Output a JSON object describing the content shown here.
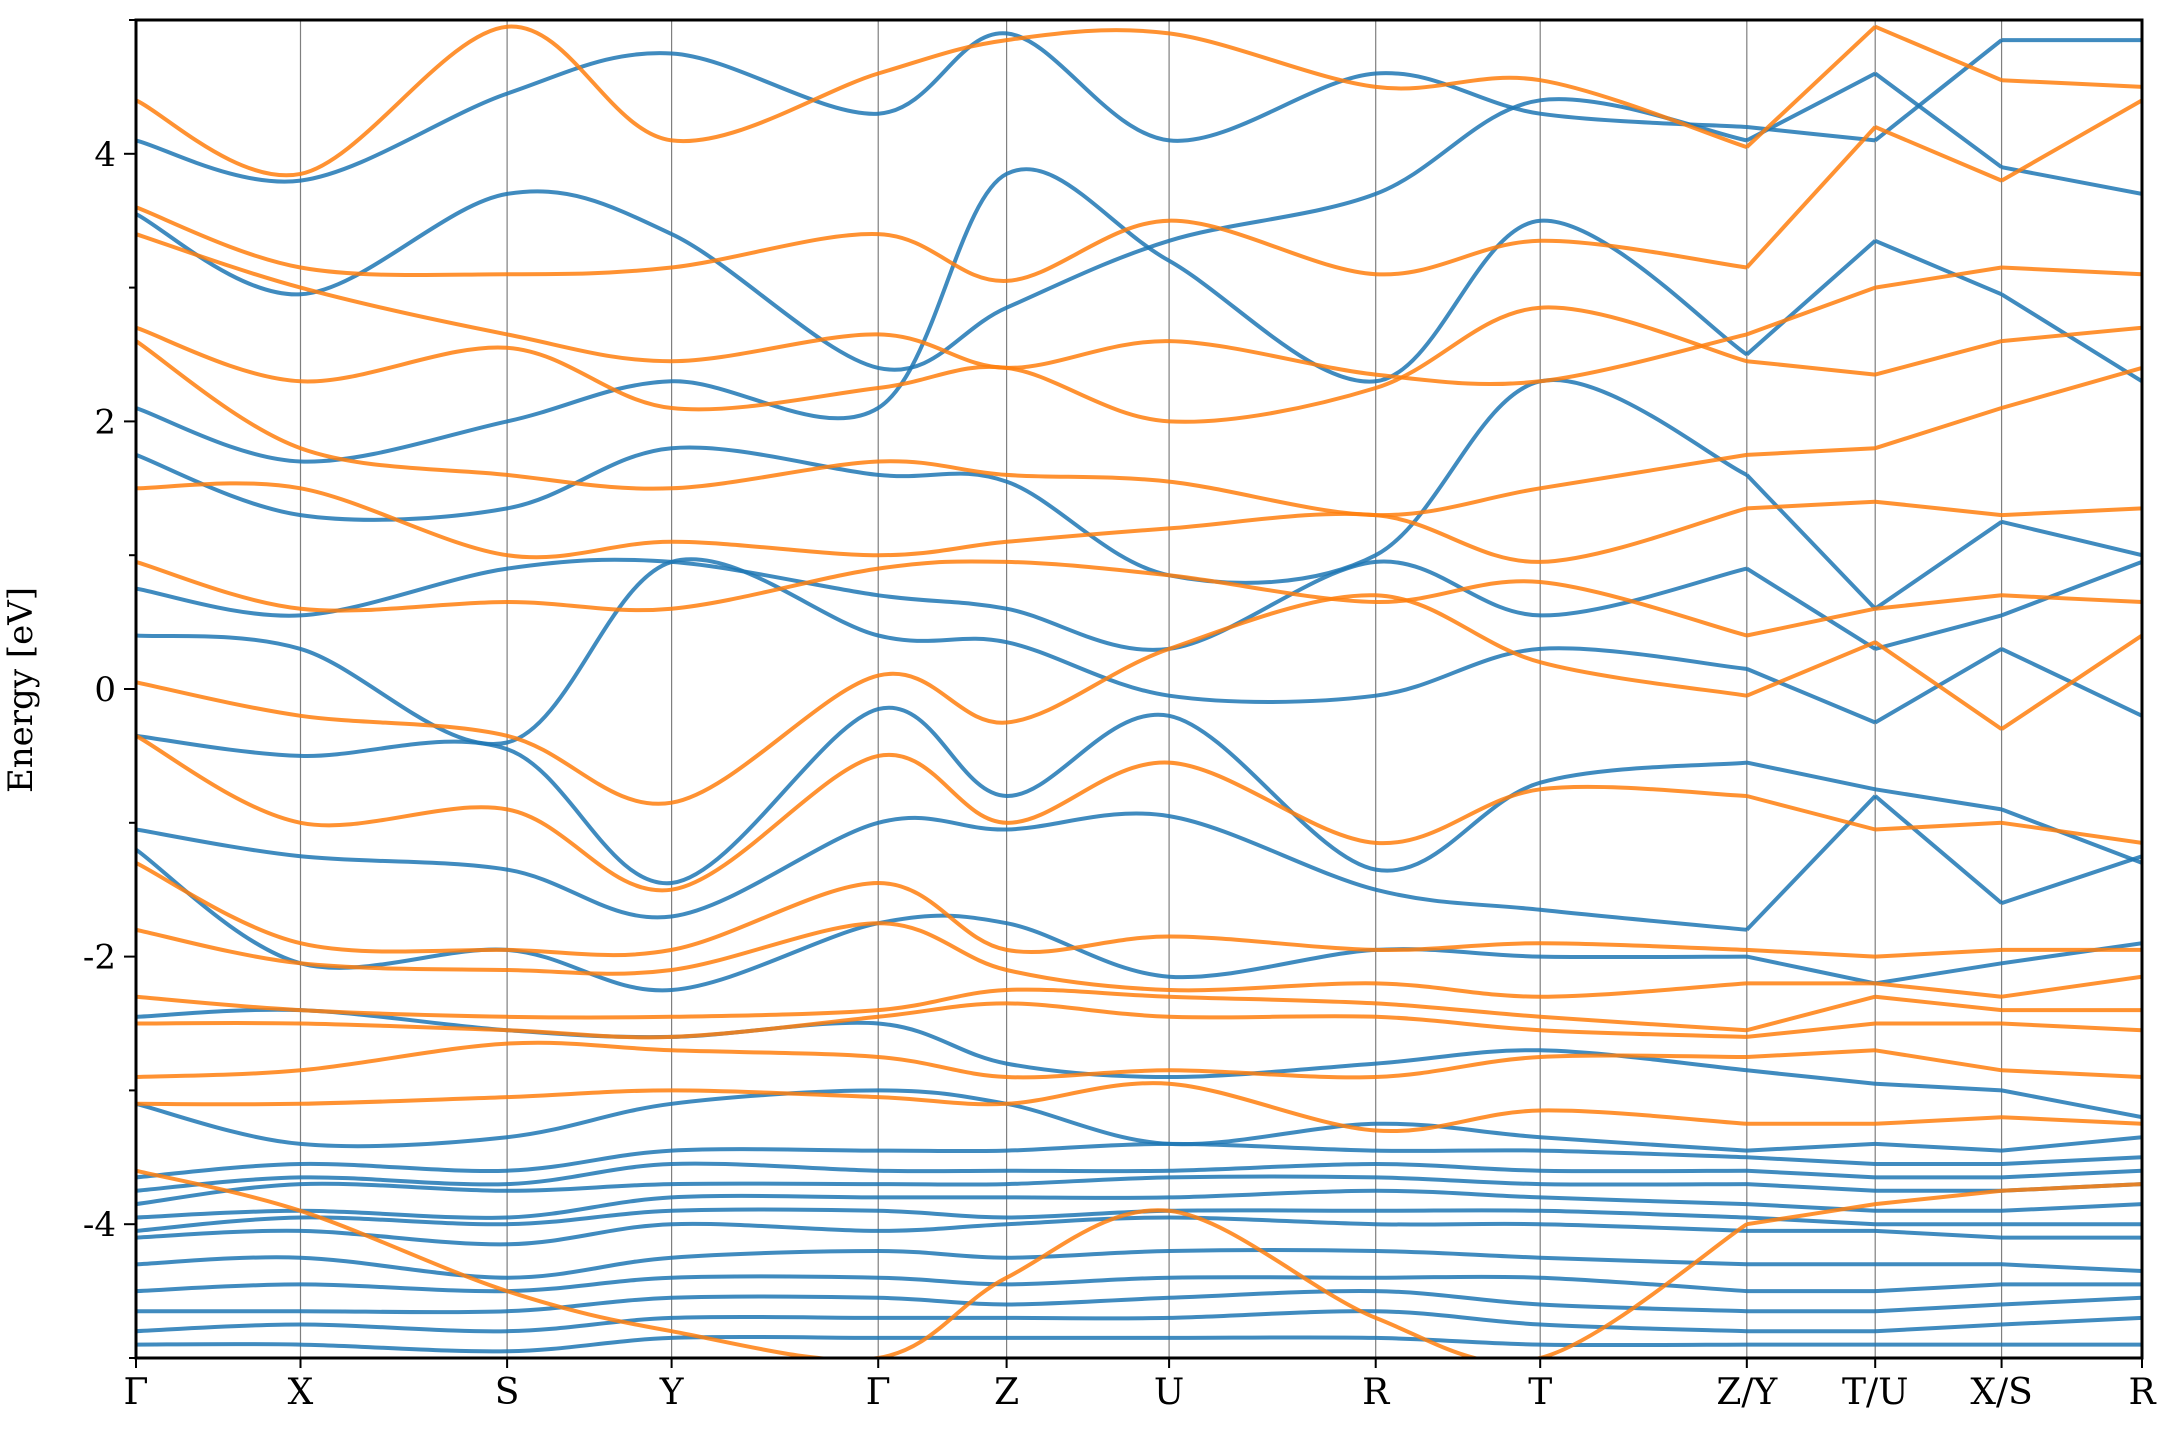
{
  "chart_data": {
    "type": "line",
    "title": "",
    "xlabel": "",
    "ylabel": "Energy [eV]",
    "ylim": [
      -5,
      5
    ],
    "yticks": [
      -4,
      -2,
      0,
      2,
      4
    ],
    "grid": "vertical lines at high-symmetry points",
    "legend": "none",
    "colors": {
      "spin_up": "#1f77b4",
      "spin_down": "#ff7f0e"
    },
    "kpath": [
      {
        "label": "Γ",
        "x": 0.0
      },
      {
        "label": "X",
        "x": 0.082
      },
      {
        "label": "S",
        "x": 0.185
      },
      {
        "label": "Y",
        "x": 0.267
      },
      {
        "label": "Γ",
        "x": 0.37
      },
      {
        "label": "Z",
        "x": 0.434
      },
      {
        "label": "U",
        "x": 0.515
      },
      {
        "label": "R",
        "x": 0.618
      },
      {
        "label": "T",
        "x": 0.7
      },
      {
        "label": "Z/Y",
        "x": 0.803
      },
      {
        "label": "T/U",
        "x": 0.867
      },
      {
        "label": "X/S",
        "x": 0.93
      },
      {
        "label": "R",
        "x": 1.0
      }
    ],
    "discontinuities": [
      0.803,
      0.867,
      0.93
    ],
    "series": [
      {
        "color": "#1f77b4",
        "bands": [
          [
            4.1,
            3.8,
            4.45,
            4.75,
            4.3,
            4.9,
            4.1,
            4.6,
            4.3,
            4.2,
            4.1,
            4.85,
            4.85
          ],
          [
            3.55,
            2.95,
            3.7,
            3.4,
            2.4,
            2.85,
            3.35,
            3.7,
            4.4,
            4.1,
            4.6,
            3.9,
            3.7
          ],
          [
            2.1,
            1.7,
            2.0,
            2.3,
            2.1,
            3.85,
            3.2,
            2.3,
            3.5,
            2.5,
            3.35,
            2.95,
            2.3
          ],
          [
            1.75,
            1.3,
            1.35,
            1.8,
            1.6,
            1.55,
            0.85,
            1.0,
            2.3,
            1.6,
            0.6,
            1.25,
            1.0
          ],
          [
            0.75,
            0.55,
            0.9,
            0.95,
            0.7,
            0.6,
            0.3,
            0.95,
            0.55,
            0.9,
            0.3,
            0.55,
            0.95
          ],
          [
            0.4,
            0.3,
            -0.4,
            0.95,
            0.4,
            0.35,
            -0.05,
            -0.05,
            0.3,
            0.15,
            -0.25,
            0.3,
            -0.2
          ],
          [
            -0.35,
            -0.5,
            -0.45,
            -1.45,
            -0.15,
            -0.8,
            -0.2,
            -1.35,
            -0.7,
            -0.55,
            -0.75,
            -0.9,
            -1.3
          ],
          [
            -1.05,
            -1.25,
            -1.35,
            -1.7,
            -1.0,
            -1.05,
            -0.95,
            -1.5,
            -1.65,
            -1.8,
            -0.8,
            -1.6,
            -1.25
          ],
          [
            -1.2,
            -2.05,
            -1.95,
            -2.25,
            -1.75,
            -1.75,
            -2.15,
            -1.95,
            -2.0,
            -2.0,
            -2.2,
            -2.05,
            -1.9
          ],
          [
            -2.45,
            -2.4,
            -2.55,
            -2.6,
            -2.5,
            -2.8,
            -2.9,
            -2.8,
            -2.7,
            -2.85,
            -2.95,
            -3.0,
            -3.2
          ],
          [
            -3.1,
            -3.4,
            -3.35,
            -3.1,
            -3.0,
            -3.1,
            -3.4,
            -3.25,
            -3.35,
            -3.45,
            -3.4,
            -3.45,
            -3.35
          ],
          [
            -3.65,
            -3.55,
            -3.6,
            -3.45,
            -3.45,
            -3.45,
            -3.4,
            -3.45,
            -3.45,
            -3.5,
            -3.55,
            -3.55,
            -3.5
          ],
          [
            -3.75,
            -3.65,
            -3.7,
            -3.55,
            -3.6,
            -3.6,
            -3.6,
            -3.55,
            -3.6,
            -3.6,
            -3.65,
            -3.65,
            -3.6
          ],
          [
            -3.85,
            -3.7,
            -3.75,
            -3.7,
            -3.7,
            -3.7,
            -3.65,
            -3.65,
            -3.7,
            -3.7,
            -3.75,
            -3.75,
            -3.7
          ],
          [
            -3.95,
            -3.9,
            -3.95,
            -3.8,
            -3.8,
            -3.8,
            -3.8,
            -3.75,
            -3.8,
            -3.85,
            -3.9,
            -3.9,
            -3.85
          ],
          [
            -4.05,
            -3.95,
            -4.0,
            -3.9,
            -3.9,
            -3.95,
            -3.9,
            -3.9,
            -3.9,
            -3.95,
            -4.0,
            -4.0,
            -4.0
          ],
          [
            -4.1,
            -4.05,
            -4.15,
            -4.0,
            -4.05,
            -4.0,
            -3.95,
            -4.0,
            -4.0,
            -4.05,
            -4.05,
            -4.1,
            -4.1
          ],
          [
            -4.3,
            -4.25,
            -4.4,
            -4.25,
            -4.2,
            -4.25,
            -4.2,
            -4.2,
            -4.25,
            -4.3,
            -4.3,
            -4.3,
            -4.35
          ],
          [
            -4.5,
            -4.45,
            -4.5,
            -4.4,
            -4.4,
            -4.45,
            -4.4,
            -4.4,
            -4.4,
            -4.5,
            -4.5,
            -4.45,
            -4.45
          ],
          [
            -4.65,
            -4.65,
            -4.65,
            -4.55,
            -4.55,
            -4.6,
            -4.55,
            -4.5,
            -4.6,
            -4.65,
            -4.65,
            -4.6,
            -4.55
          ],
          [
            -4.8,
            -4.75,
            -4.8,
            -4.7,
            -4.7,
            -4.7,
            -4.7,
            -4.65,
            -4.75,
            -4.8,
            -4.8,
            -4.75,
            -4.7
          ],
          [
            -4.9,
            -4.9,
            -4.95,
            -4.85,
            -4.85,
            -4.85,
            -4.85,
            -4.85,
            -4.9,
            -4.9,
            -4.9,
            -4.9,
            -4.9
          ]
        ]
      },
      {
        "color": "#ff7f0e",
        "bands": [
          [
            4.4,
            3.85,
            4.95,
            4.1,
            4.6,
            4.85,
            4.9,
            4.5,
            4.55,
            4.05,
            4.95,
            4.55,
            4.5
          ],
          [
            3.6,
            3.15,
            3.1,
            3.15,
            3.4,
            3.05,
            3.5,
            3.1,
            3.35,
            3.15,
            4.2,
            3.8,
            4.4
          ],
          [
            3.4,
            3.0,
            2.65,
            2.45,
            2.65,
            2.4,
            2.6,
            2.35,
            2.3,
            2.65,
            3.0,
            3.15,
            3.1
          ],
          [
            2.7,
            2.3,
            2.55,
            2.1,
            2.25,
            2.4,
            2.0,
            2.25,
            2.85,
            2.45,
            2.35,
            2.6,
            2.7
          ],
          [
            2.6,
            1.8,
            1.6,
            1.5,
            1.7,
            1.6,
            1.55,
            1.3,
            1.5,
            1.75,
            1.8,
            2.1,
            2.4
          ],
          [
            1.5,
            1.5,
            1.0,
            1.1,
            1.0,
            1.1,
            1.2,
            1.3,
            0.95,
            1.35,
            1.4,
            1.3,
            1.35
          ],
          [
            0.95,
            0.6,
            0.65,
            0.6,
            0.9,
            0.95,
            0.85,
            0.65,
            0.8,
            0.4,
            0.6,
            0.7,
            0.65
          ],
          [
            0.05,
            -0.2,
            -0.35,
            -0.85,
            0.1,
            -0.25,
            0.3,
            0.7,
            0.2,
            -0.05,
            0.35,
            -0.3,
            0.4
          ],
          [
            -0.35,
            -1.0,
            -0.9,
            -1.5,
            -0.5,
            -1.0,
            -0.55,
            -1.15,
            -0.75,
            -0.8,
            -1.05,
            -1.0,
            -1.15
          ],
          [
            -1.3,
            -1.9,
            -1.95,
            -1.95,
            -1.45,
            -1.95,
            -1.85,
            -1.95,
            -1.9,
            -1.95,
            -2.0,
            -1.95,
            -1.95
          ],
          [
            -1.8,
            -2.05,
            -2.1,
            -2.1,
            -1.75,
            -2.1,
            -2.25,
            -2.2,
            -2.3,
            -2.2,
            -2.2,
            -2.3,
            -2.15
          ],
          [
            -2.3,
            -2.4,
            -2.45,
            -2.45,
            -2.4,
            -2.25,
            -2.3,
            -2.35,
            -2.45,
            -2.55,
            -2.3,
            -2.4,
            -2.4
          ],
          [
            -2.5,
            -2.5,
            -2.55,
            -2.6,
            -2.45,
            -2.35,
            -2.45,
            -2.45,
            -2.55,
            -2.6,
            -2.5,
            -2.5,
            -2.55
          ],
          [
            -2.9,
            -2.85,
            -2.65,
            -2.7,
            -2.75,
            -2.9,
            -2.85,
            -2.9,
            -2.75,
            -2.75,
            -2.7,
            -2.85,
            -2.9
          ],
          [
            -3.1,
            -3.1,
            -3.05,
            -3.0,
            -3.05,
            -3.1,
            -2.95,
            -3.3,
            -3.15,
            -3.25,
            -3.25,
            -3.2,
            -3.25
          ],
          [
            -3.6,
            -3.9,
            -4.5,
            -4.8,
            -5.0,
            -4.4,
            -3.9,
            -4.7,
            -5.0,
            -4.0,
            -3.85,
            -3.75,
            -3.7
          ]
        ]
      }
    ]
  }
}
